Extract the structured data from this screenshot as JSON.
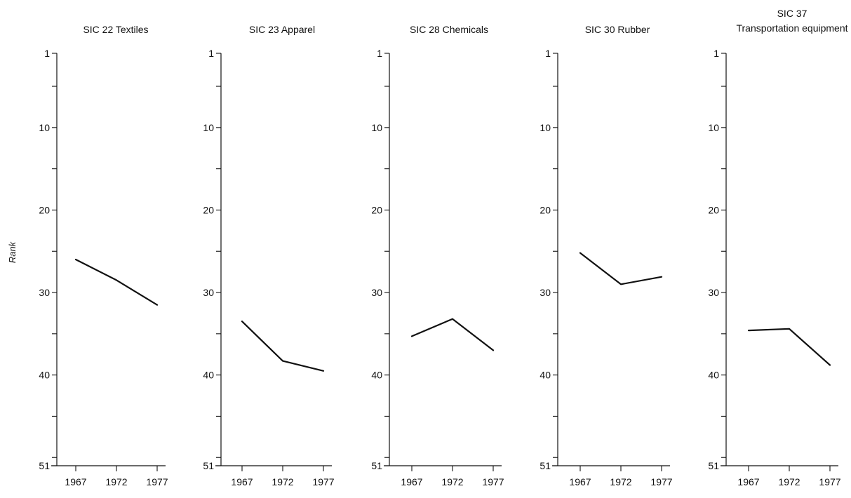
{
  "figure": {
    "ylabel": "Rank"
  },
  "chart_data": [
    {
      "type": "line",
      "title": [
        "SIC 22  Textiles"
      ],
      "x": [
        "1967",
        "1972",
        "1977"
      ],
      "values": [
        26,
        28.5,
        31.5
      ],
      "yticks": [
        1,
        10,
        20,
        30,
        40,
        51
      ],
      "ylim": [
        1,
        51
      ],
      "y_inverted": true,
      "grid": false
    },
    {
      "type": "line",
      "title": [
        "SIC 23  Apparel"
      ],
      "x": [
        "1967",
        "1972",
        "1977"
      ],
      "values": [
        33.5,
        38.3,
        39.5
      ],
      "yticks": [
        1,
        10,
        20,
        30,
        40,
        51
      ],
      "ylim": [
        1,
        51
      ],
      "y_inverted": true,
      "grid": false
    },
    {
      "type": "line",
      "title": [
        "SIC 28  Chemicals"
      ],
      "x": [
        "1967",
        "1972",
        "1977"
      ],
      "values": [
        35.3,
        33.2,
        37
      ],
      "yticks": [
        1,
        10,
        20,
        30,
        40,
        51
      ],
      "ylim": [
        1,
        51
      ],
      "y_inverted": true,
      "grid": false
    },
    {
      "type": "line",
      "title": [
        "SIC 30 Rubber"
      ],
      "x": [
        "1967",
        "1972",
        "1977"
      ],
      "values": [
        25.2,
        29,
        28.1
      ],
      "yticks": [
        1,
        10,
        20,
        30,
        40,
        51
      ],
      "ylim": [
        1,
        51
      ],
      "y_inverted": true,
      "grid": false
    },
    {
      "type": "line",
      "title": [
        "SIC  37",
        "Transportation equipment"
      ],
      "x": [
        "1967",
        "1972",
        "1977"
      ],
      "values": [
        34.6,
        34.4,
        38.8
      ],
      "yticks": [
        1,
        10,
        20,
        30,
        40,
        51
      ],
      "ylim": [
        1,
        51
      ],
      "y_inverted": true,
      "grid": false
    }
  ]
}
